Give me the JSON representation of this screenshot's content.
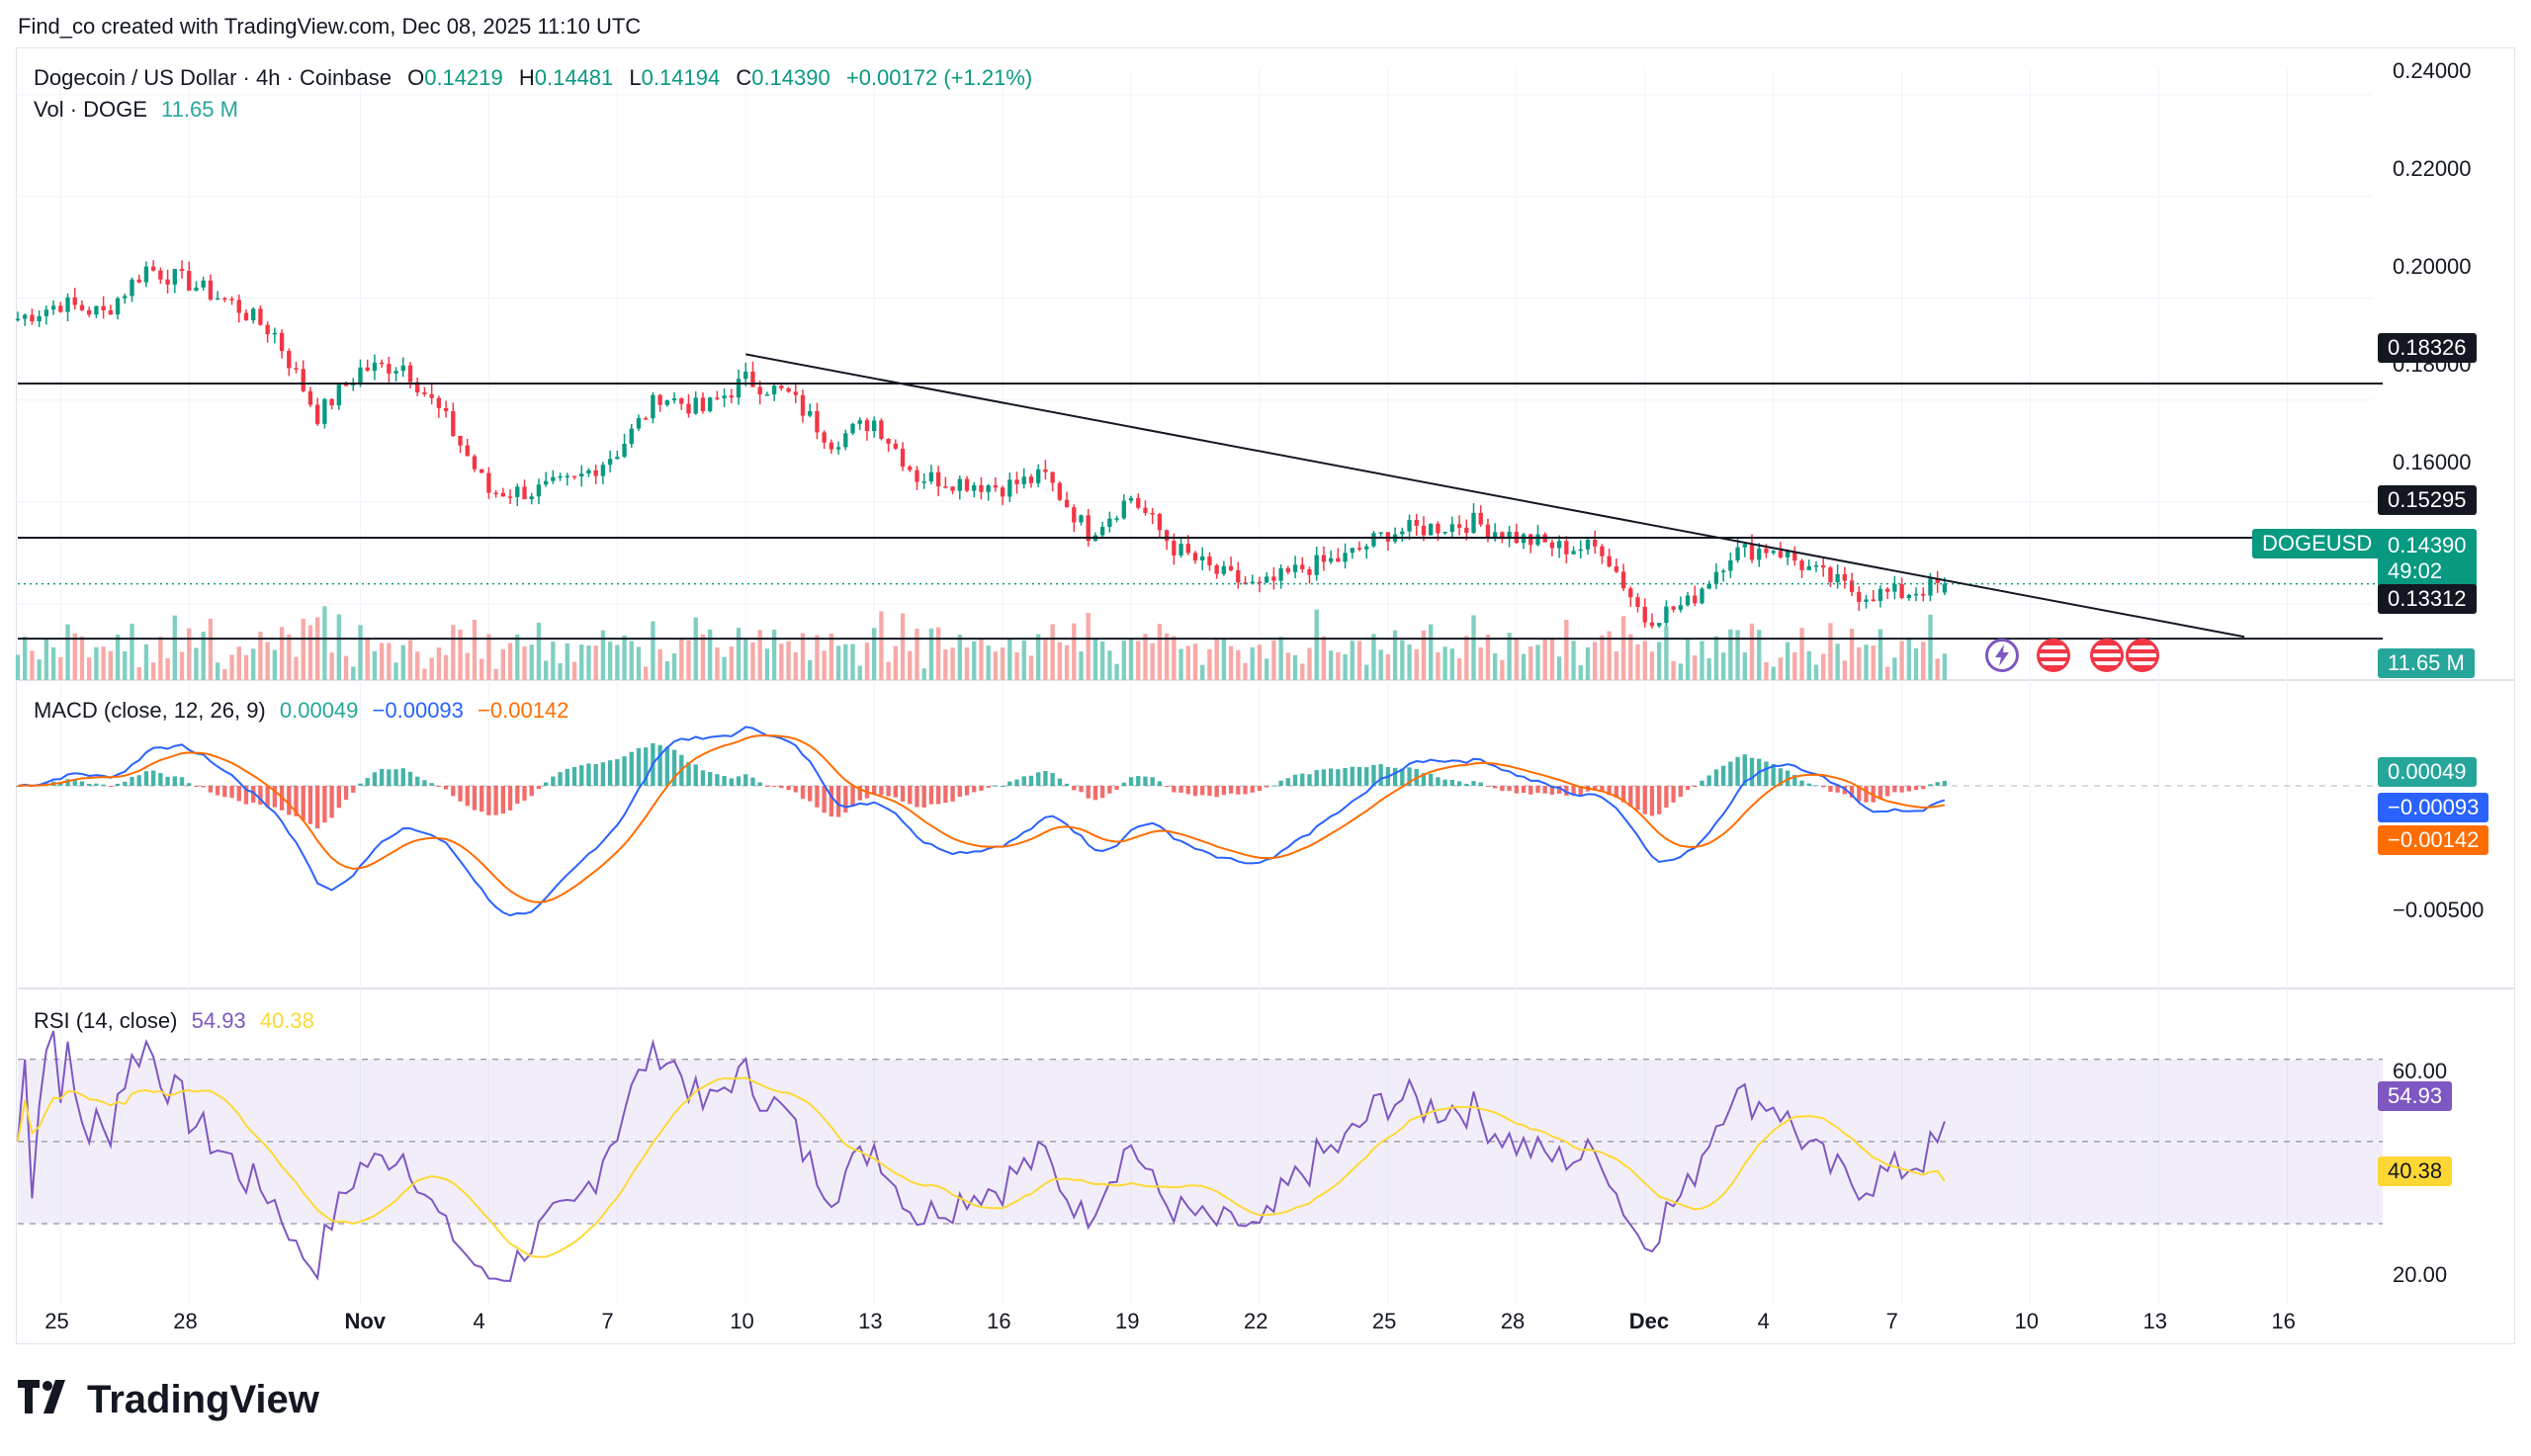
{
  "header": {
    "credit": "Find_co created with TradingView.com, Dec 08, 2025 11:10 UTC"
  },
  "price_legend": {
    "symbol": "Dogecoin / US Dollar · 4h · Coinbase",
    "o_label": "O",
    "o": "0.14219",
    "h_label": "H",
    "h": "0.14481",
    "l_label": "L",
    "l": "0.14194",
    "c_label": "C",
    "c": "0.14390",
    "change": "+0.00172 (+1.21%)"
  },
  "vol_legend": {
    "label": "Vol · DOGE",
    "value": "11.65 M"
  },
  "macd_legend": {
    "label": "MACD (close, 12, 26, 9)",
    "hist": "0.00049",
    "macd": "−0.00093",
    "signal": "−0.00142"
  },
  "rsi_legend": {
    "label": "RSI (14, close)",
    "rsi": "54.93",
    "ma": "40.38"
  },
  "price_axis": [
    "0.24000",
    "0.22000",
    "0.20000",
    "0.18000",
    "0.16000"
  ],
  "macd_axis": [
    "−0.00500"
  ],
  "rsi_axis": [
    "60.00",
    "20.00"
  ],
  "time_axis": [
    "25",
    "28",
    "Nov",
    "4",
    "7",
    "10",
    "13",
    "16",
    "19",
    "22",
    "25",
    "28",
    "Dec",
    "4",
    "7",
    "10",
    "13",
    "16"
  ],
  "tags": {
    "level_top": "0.18326",
    "level_mid": "0.15295",
    "level_low": "0.13312",
    "symbol_tag": "DOGEUSD",
    "last_price": "0.14390",
    "countdown": "49:02",
    "volume": "11.65 M",
    "macd_hist": "0.00049",
    "macd_line": "−0.00093",
    "macd_signal": "−0.00142",
    "rsi_value": "54.93",
    "rsi_ma": "40.38"
  },
  "footer": {
    "brand": "TradingView"
  },
  "colors": {
    "up": "#089981",
    "down": "#f23645",
    "macd": "#2962ff",
    "signal": "#ff6d00",
    "rsi": "#7e57c2",
    "rsi_ma": "#fdd835"
  },
  "chart_data": {
    "type": "candlestick",
    "symbol": "Dogecoin / US Dollar",
    "timeframe": "4h",
    "exchange": "Coinbase",
    "y_range": [
      0.125,
      0.245
    ],
    "horizontal_levels": [
      0.18326,
      0.15295,
      0.13312
    ],
    "trendline": {
      "from": [
        "Nov 10",
        0.189
      ],
      "to": [
        "Dec 15",
        0.1335
      ]
    },
    "close_path": [
      [
        "Oct 24",
        0.196
      ],
      [
        "Oct 25",
        0.199
      ],
      [
        "Oct 26",
        0.197
      ],
      [
        "Oct 27",
        0.206
      ],
      [
        "Oct 28",
        0.203
      ],
      [
        "Oct 29",
        0.199
      ],
      [
        "Oct 30",
        0.193
      ],
      [
        "Oct 31",
        0.177
      ],
      [
        "Nov 1",
        0.186
      ],
      [
        "Nov 2",
        0.187
      ],
      [
        "Nov 3",
        0.176
      ],
      [
        "Nov 4",
        0.162
      ],
      [
        "Nov 5",
        0.162
      ],
      [
        "Nov 6",
        0.164
      ],
      [
        "Nov 7",
        0.17
      ],
      [
        "Nov 8",
        0.181
      ],
      [
        "Nov 9",
        0.178
      ],
      [
        "Nov 10",
        0.184
      ],
      [
        "Nov 11",
        0.181
      ],
      [
        "Nov 12",
        0.172
      ],
      [
        "Nov 13",
        0.176
      ],
      [
        "Nov 14",
        0.165
      ],
      [
        "Nov 15",
        0.164
      ],
      [
        "Nov 16",
        0.163
      ],
      [
        "Nov 17",
        0.165
      ],
      [
        "Nov 18",
        0.154
      ],
      [
        "Nov 19",
        0.161
      ],
      [
        "Nov 20",
        0.151
      ],
      [
        "Nov 21",
        0.146
      ],
      [
        "Nov 22",
        0.143
      ],
      [
        "Nov 23",
        0.147
      ],
      [
        "Nov 24",
        0.149
      ],
      [
        "Nov 25",
        0.154
      ],
      [
        "Nov 26",
        0.155
      ],
      [
        "Nov 27",
        0.156
      ],
      [
        "Nov 28",
        0.153
      ],
      [
        "Nov 29",
        0.151
      ],
      [
        "Nov 30",
        0.151
      ],
      [
        "Dec 1",
        0.137
      ],
      [
        "Dec 2",
        0.14
      ],
      [
        "Dec 3",
        0.15
      ],
      [
        "Dec 4",
        0.151
      ],
      [
        "Dec 5",
        0.146
      ],
      [
        "Dec 6",
        0.142
      ],
      [
        "Dec 7",
        0.142
      ],
      [
        "Dec 8",
        0.1439
      ]
    ],
    "last": {
      "open": 0.14219,
      "high": 0.14481,
      "low": 0.14194,
      "close": 0.1439,
      "change": 0.00172,
      "change_pct": 1.21
    },
    "volume_last": "11.65 M",
    "macd": {
      "fast": 12,
      "slow": 26,
      "signal": 9,
      "histogram": 0.00049,
      "macd": -0.00093,
      "signal_value": -0.00142
    },
    "rsi": {
      "length": 14,
      "value": 54.93,
      "ma": 40.38,
      "bands": [
        70,
        50,
        30
      ]
    }
  }
}
